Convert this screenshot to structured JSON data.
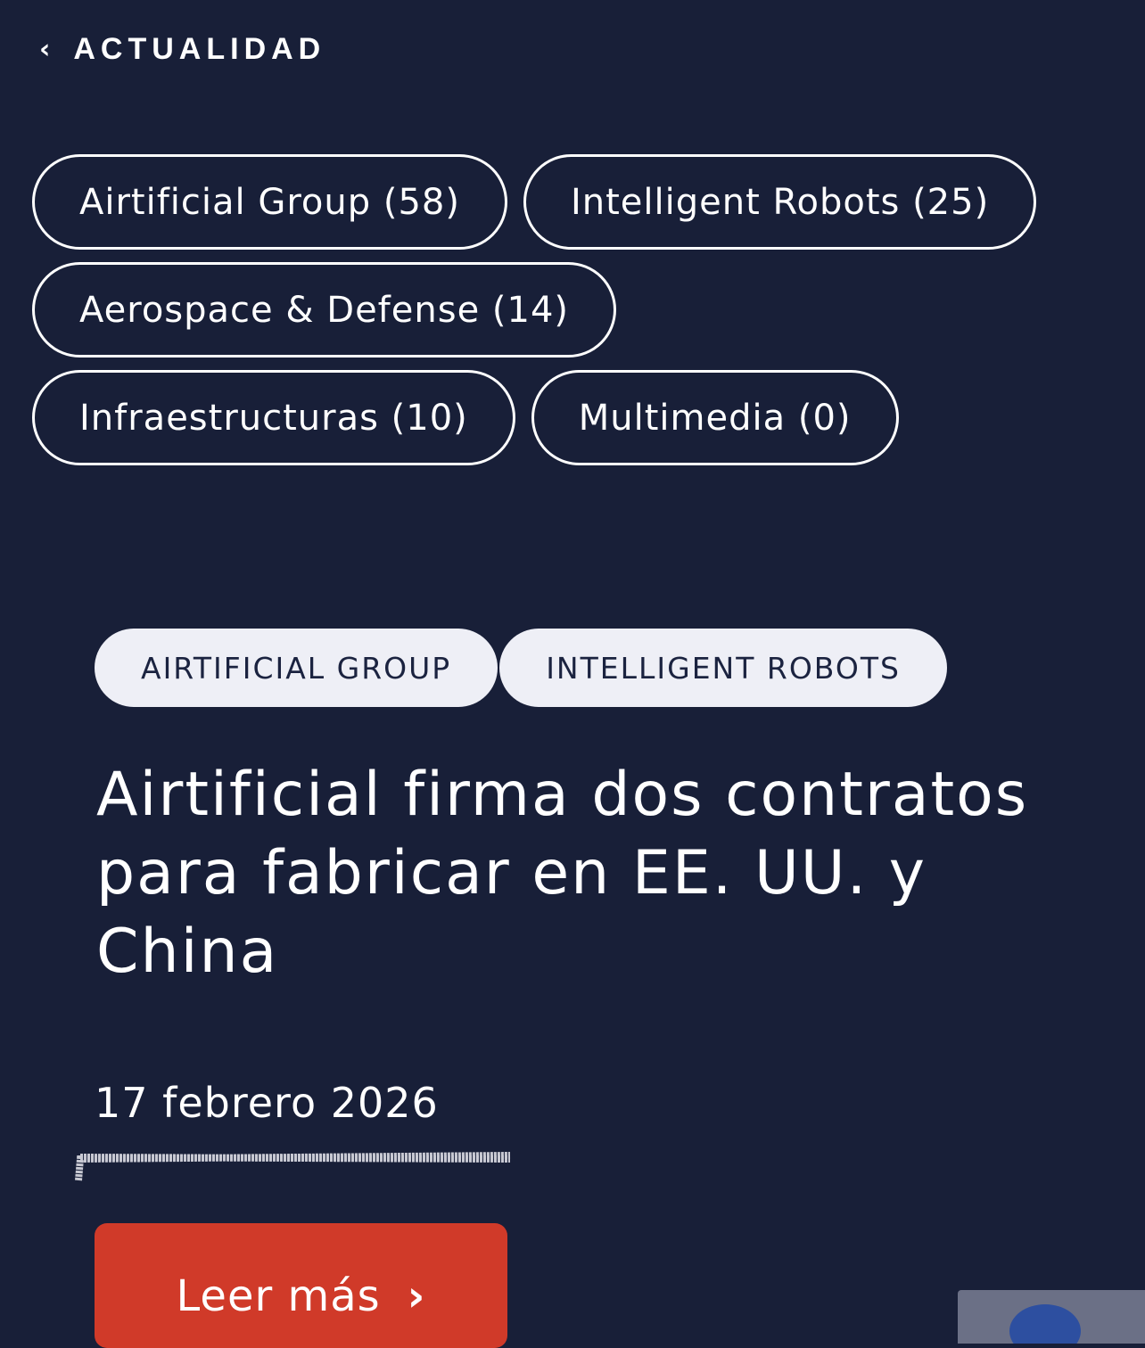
{
  "header": {
    "back_label": "ACTUALIDAD",
    "back_icon": "chevron-left-icon"
  },
  "filters": [
    {
      "label": "Airtificial Group (58)"
    },
    {
      "label": "Intelligent Robots (25)"
    },
    {
      "label": "Aerospace & Defense (14)"
    },
    {
      "label": "Infraestructuras (10)"
    },
    {
      "label": "Multimedia (0)"
    }
  ],
  "article": {
    "tags": [
      "AIRTIFICIAL GROUP",
      "INTELLIGENT ROBOTS"
    ],
    "title": "Airtificial firma dos contratos para fabricar en EE. UU. y China",
    "date": "17 febrero 2026",
    "read_more": "Leer más",
    "read_more_icon": "chevron-right-icon"
  },
  "colors": {
    "background": "#181f38",
    "accent": "#d03a29",
    "tag_bg": "#eeeff6"
  }
}
